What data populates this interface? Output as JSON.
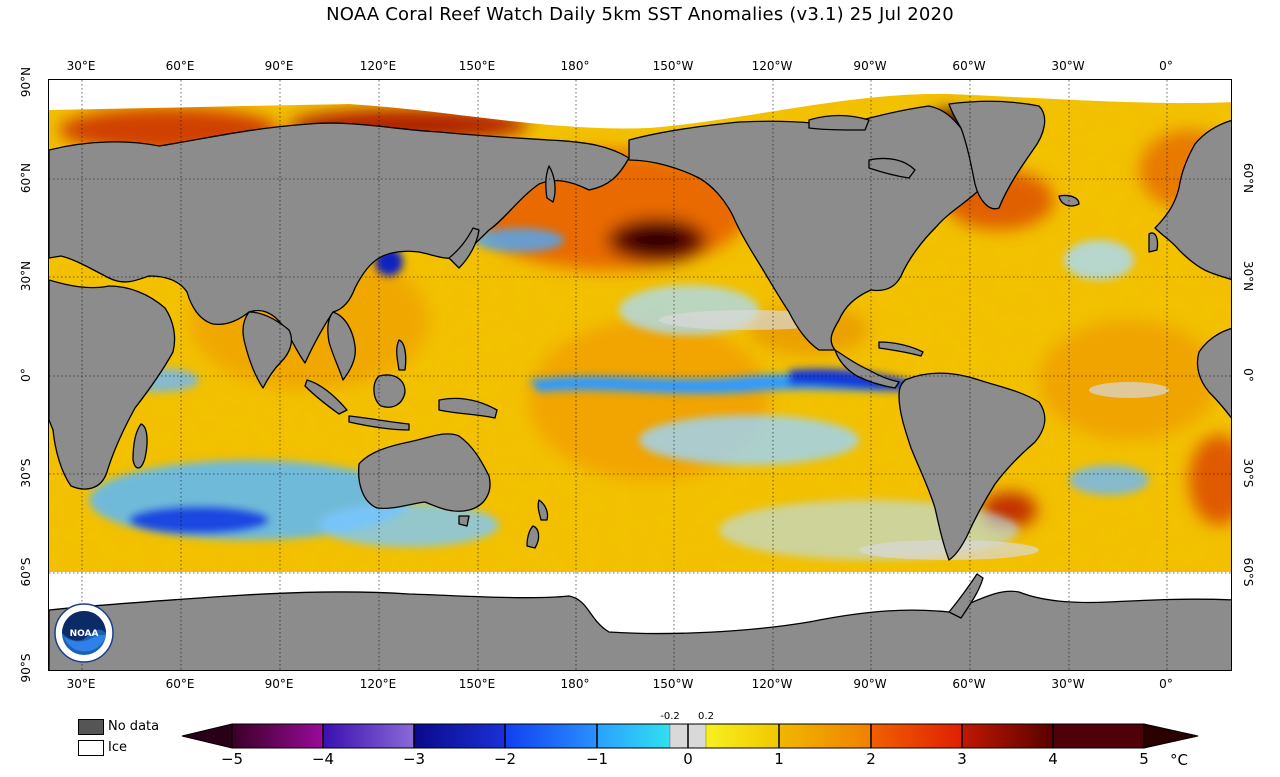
{
  "title": "NOAA Coral Reef Watch Daily 5km SST Anomalies  (v3.1)   25 Jul 2020",
  "lon_ticks": [
    "30°E",
    "60°E",
    "90°E",
    "120°E",
    "150°E",
    "180°",
    "150°W",
    "120°W",
    "90°W",
    "60°W",
    "30°W",
    "0°"
  ],
  "lat_ticks_left": [
    "90°N",
    "60°N",
    "30°N",
    "0°",
    "30°S",
    "60°S",
    "90°S"
  ],
  "lat_ticks_right": [
    "60°N",
    "30°N",
    "0°",
    "30°S",
    "60°S"
  ],
  "legend": {
    "no_data": "No data",
    "ice": "Ice"
  },
  "colorbar": {
    "ticks": [
      "−5",
      "−4",
      "−3",
      "−2",
      "−1",
      "0",
      "1",
      "2",
      "3",
      "4",
      "5"
    ],
    "near_zero_labels": [
      "-0.2",
      "0.2"
    ],
    "unit": "°C"
  },
  "logo": {
    "text": "NOAA"
  },
  "colors": {
    "land": "#8c8c8c",
    "no_data": "#555555",
    "ice": "#ffffff",
    "neutral": "#d9d9d9",
    "warm_mid": "#f0b800",
    "hot": "#c83200",
    "very_hot": "#4a0000",
    "cool": "#2a9cff",
    "cold": "#1030d0"
  }
}
